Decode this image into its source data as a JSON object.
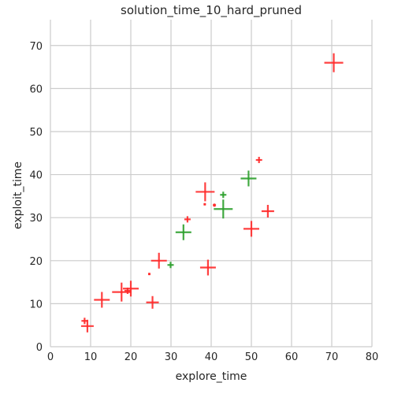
{
  "chart_data": {
    "type": "scatter",
    "title": "solution_time_10_hard_pruned",
    "xlabel": "explore_time",
    "ylabel": "exploit_time",
    "xlim": [
      0,
      80
    ],
    "ylim": [
      0,
      76
    ],
    "xticks": [
      0,
      10,
      20,
      30,
      40,
      50,
      60,
      70,
      80
    ],
    "yticks": [
      0,
      10,
      20,
      30,
      40,
      50,
      60,
      70
    ],
    "grid": true,
    "marker": "plus",
    "series": [
      {
        "color": "#ff2a2a",
        "points": [
          {
            "x": 70.5,
            "y": 66.0,
            "size": 3
          },
          {
            "x": 38.5,
            "y": 36.0,
            "size": 3
          },
          {
            "x": 51.9,
            "y": 43.4,
            "size": 1
          },
          {
            "x": 40.8,
            "y": 32.9,
            "size": 0.5
          },
          {
            "x": 38.4,
            "y": 33.1,
            "size": 0.3
          },
          {
            "x": 34.1,
            "y": 29.6,
            "size": 1
          },
          {
            "x": 54.1,
            "y": 31.5,
            "size": 2
          },
          {
            "x": 50.0,
            "y": 27.4,
            "size": 2.5
          },
          {
            "x": 27.0,
            "y": 20.0,
            "size": 2.5
          },
          {
            "x": 39.2,
            "y": 18.4,
            "size": 2.5
          },
          {
            "x": 24.6,
            "y": 16.9,
            "size": 0.3
          },
          {
            "x": 20.0,
            "y": 13.5,
            "size": 2.5
          },
          {
            "x": 17.7,
            "y": 12.7,
            "size": 3
          },
          {
            "x": 19.2,
            "y": 13.0,
            "size": 1
          },
          {
            "x": 12.8,
            "y": 10.9,
            "size": 2.5
          },
          {
            "x": 25.4,
            "y": 10.3,
            "size": 2
          },
          {
            "x": 8.5,
            "y": 6.0,
            "size": 1
          },
          {
            "x": 9.2,
            "y": 4.8,
            "size": 2
          }
        ]
      },
      {
        "color": "#2ca02c",
        "points": [
          {
            "x": 49.3,
            "y": 39.1,
            "size": 2.5
          },
          {
            "x": 43.0,
            "y": 35.3,
            "size": 1
          },
          {
            "x": 43.0,
            "y": 32.0,
            "size": 3
          },
          {
            "x": 33.1,
            "y": 26.6,
            "size": 2.5
          },
          {
            "x": 29.9,
            "y": 19.0,
            "size": 1
          }
        ]
      }
    ]
  }
}
